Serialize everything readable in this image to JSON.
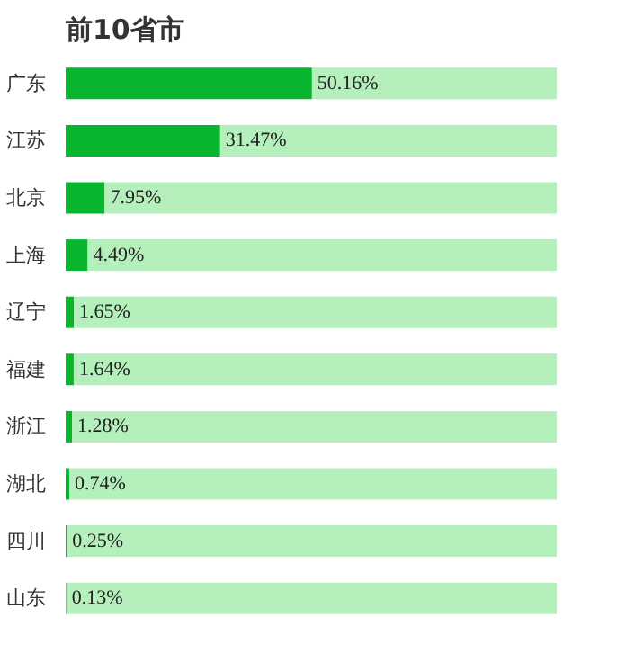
{
  "chart_data": {
    "type": "bar",
    "orientation": "horizontal",
    "stacked": true,
    "title": "前10省市",
    "categories": [
      "广东",
      "江苏",
      "北京",
      "上海",
      "辽宁",
      "福建",
      "浙江",
      "湖北",
      "四川",
      "山东"
    ],
    "series": [
      {
        "color": "#08b52e",
        "values": [
          50.16,
          31.47,
          7.95,
          4.49,
          1.65,
          1.64,
          1.28,
          0.74,
          0.25,
          0.13
        ],
        "value_labels": [
          "50.16%",
          "31.47%",
          "7.95%",
          "4.49%",
          "1.65%",
          "1.64%",
          "1.28%",
          "0.74%",
          "0.25%",
          "0.13%"
        ]
      },
      {
        "color": "#b4efbc",
        "values": [
          49.84,
          68.53,
          92.05,
          95.51,
          98.35,
          98.36,
          98.72,
          99.26,
          99.75,
          99.87
        ]
      }
    ],
    "xlim": [
      0,
      100
    ],
    "tick_labels": "y",
    "grid": false
  }
}
